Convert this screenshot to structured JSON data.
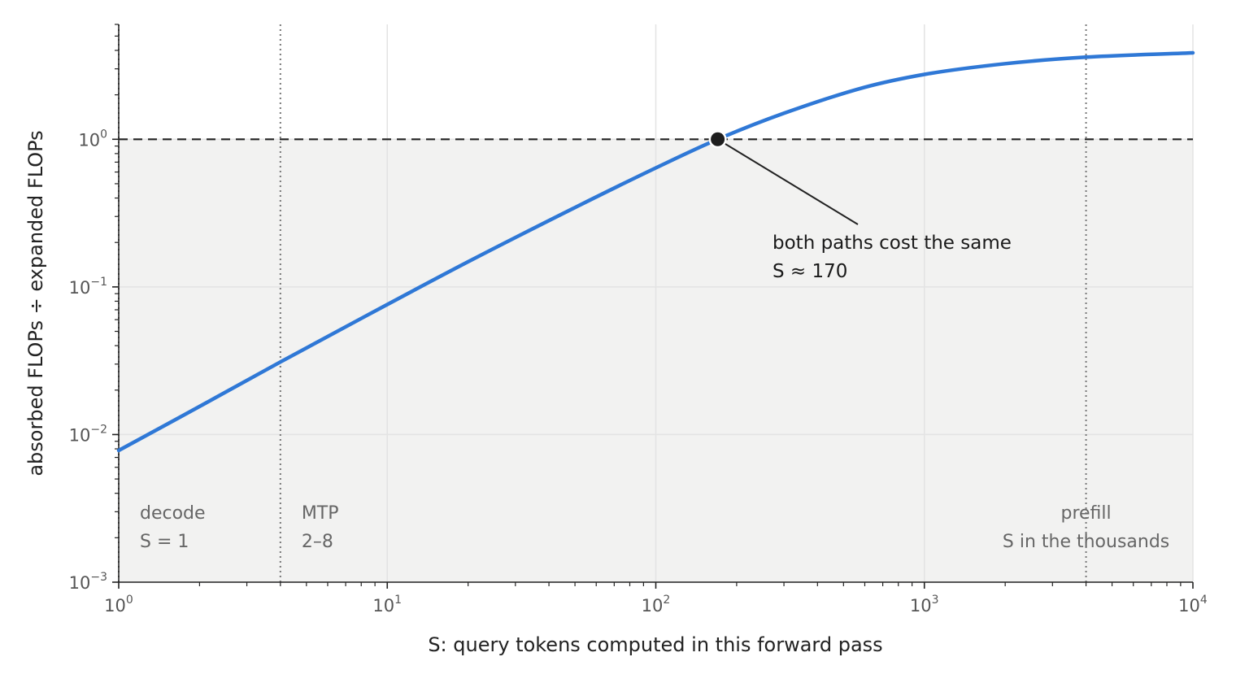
{
  "chart_data": {
    "type": "line",
    "x_scale": "log",
    "y_scale": "log",
    "xlim": [
      1,
      10000
    ],
    "ylim": [
      0.001,
      6
    ],
    "xlabel": "S: query tokens computed in this forward pass",
    "ylabel": "absorbed FLOPs ÷ expanded FLOPs",
    "x_ticks": [
      {
        "value": 1,
        "base": "10",
        "exp": "0"
      },
      {
        "value": 10,
        "base": "10",
        "exp": "1"
      },
      {
        "value": 100,
        "base": "10",
        "exp": "2"
      },
      {
        "value": 1000,
        "base": "10",
        "exp": "3"
      },
      {
        "value": 10000,
        "base": "10",
        "exp": "4"
      }
    ],
    "y_ticks": [
      {
        "value": 1,
        "base": "10",
        "exp": "0"
      },
      {
        "value": 0.1,
        "base": "10",
        "exp": "−1"
      },
      {
        "value": 0.01,
        "base": "10",
        "exp": "−2"
      },
      {
        "value": 0.001,
        "base": "10",
        "exp": "−3"
      }
    ],
    "grid": true,
    "series": [
      {
        "color": "#2f78d6",
        "x": [
          1,
          2,
          4,
          10,
          20,
          50,
          100,
          170,
          300,
          600,
          1000,
          2000,
          4000,
          10000
        ],
        "y": [
          0.0078,
          0.0155,
          0.031,
          0.076,
          0.148,
          0.345,
          0.64,
          1.0,
          1.5,
          2.25,
          2.75,
          3.25,
          3.6,
          3.85
        ]
      }
    ],
    "reference_line": {
      "y": 1,
      "style": "dashed",
      "color": "#222222"
    },
    "shaded_region": {
      "y_below": 1,
      "color": "#f2f2f1"
    },
    "vertical_markers": [
      {
        "x": 1,
        "lines": [
          "decode",
          "S = 1"
        ],
        "align": "left"
      },
      {
        "x": 4,
        "lines": [
          "MTP",
          "2–8"
        ],
        "align": "left"
      },
      {
        "x": 4000,
        "lines": [
          "prefill",
          "S in the thousands"
        ],
        "align": "center"
      }
    ],
    "annotation": {
      "x": 170,
      "y": 1,
      "lines": [
        "both paths cost the same",
        "S ≈ 170"
      ]
    }
  }
}
